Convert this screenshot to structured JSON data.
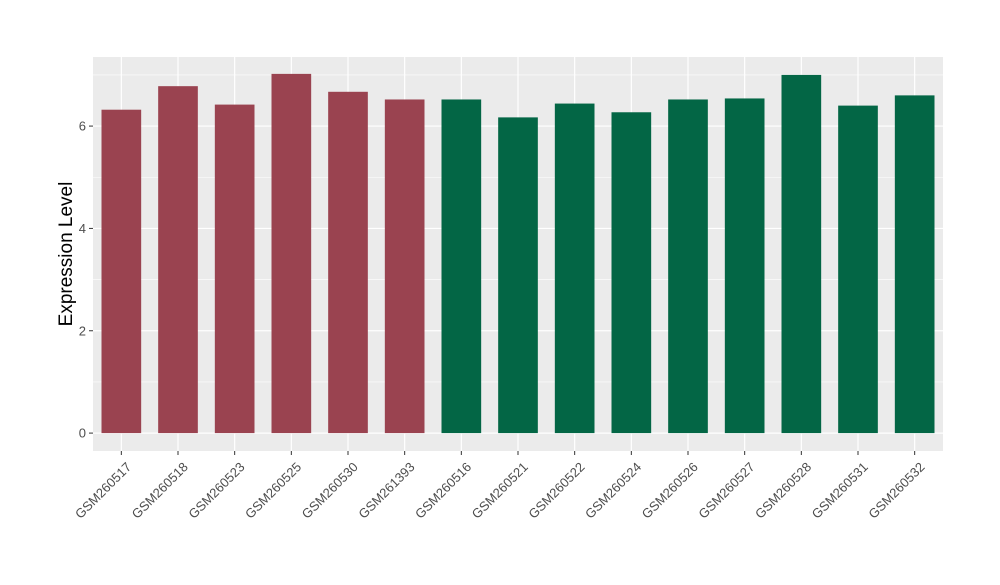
{
  "chart_data": {
    "type": "bar",
    "title": "",
    "xlabel": "",
    "ylabel": "Expression Level",
    "ylim": [
      -0.35,
      7.35
    ],
    "yticks": [
      0,
      2,
      4,
      6
    ],
    "grid": true,
    "legend": "none",
    "categories": [
      "GSM260517",
      "GSM260518",
      "GSM260523",
      "GSM260525",
      "GSM260530",
      "GSM261393",
      "GSM260516",
      "GSM260521",
      "GSM260522",
      "GSM260524",
      "GSM260526",
      "GSM260527",
      "GSM260528",
      "GSM260531",
      "GSM260532"
    ],
    "values": [
      6.32,
      6.78,
      6.42,
      7.02,
      6.67,
      6.52,
      6.52,
      6.17,
      6.44,
      6.27,
      6.52,
      6.54,
      7.0,
      6.4,
      6.6
    ],
    "bar_colors": [
      "#9a4350",
      "#9a4350",
      "#9a4350",
      "#9a4350",
      "#9a4350",
      "#9a4350",
      "#036645",
      "#036645",
      "#036645",
      "#036645",
      "#036645",
      "#036645",
      "#036645",
      "#036645",
      "#036645"
    ],
    "panel_background": "#ebebeb",
    "grid_color": "#ffffff"
  }
}
